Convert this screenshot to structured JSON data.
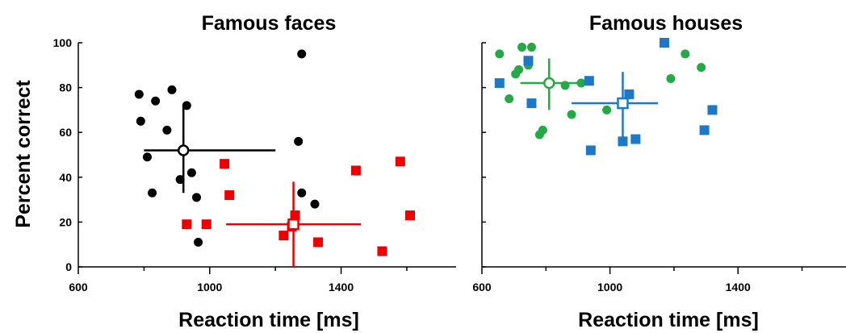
{
  "chart_data": [
    {
      "type": "scatter",
      "title": "Famous faces",
      "xlabel": "Reaction time [ms]",
      "ylabel": "Percent correct",
      "xlim": [
        600,
        1750
      ],
      "ylim": [
        0,
        100
      ],
      "x_ticks": [
        600,
        1000,
        1400
      ],
      "y_ticks": [
        0,
        20,
        40,
        60,
        80,
        100
      ],
      "grid": false,
      "series": [
        {
          "marker": "circle",
          "color": "#000000",
          "points": [
            [
              785,
              77
            ],
            [
              790,
              65
            ],
            [
              810,
              49
            ],
            [
              825,
              33
            ],
            [
              835,
              74
            ],
            [
              870,
              61
            ],
            [
              885,
              79
            ],
            [
              910,
              39
            ],
            [
              930,
              72
            ],
            [
              945,
              42
            ],
            [
              960,
              31
            ],
            [
              965,
              11
            ],
            [
              1270,
              56
            ],
            [
              1280,
              95
            ],
            [
              1280,
              33
            ],
            [
              1320,
              28
            ]
          ],
          "mean": {
            "x": 920,
            "y": 52,
            "x_err": [
              800,
              1200
            ],
            "y_err": [
              33,
              72
            ]
          }
        },
        {
          "marker": "square",
          "color": "#ee0000",
          "points": [
            [
              930,
              19
            ],
            [
              990,
              19
            ],
            [
              1045,
              46
            ],
            [
              1060,
              32
            ],
            [
              1225,
              14
            ],
            [
              1250,
              18
            ],
            [
              1260,
              23
            ],
            [
              1330,
              11
            ],
            [
              1445,
              43
            ],
            [
              1525,
              7
            ],
            [
              1580,
              47
            ],
            [
              1610,
              23
            ]
          ],
          "mean": {
            "x": 1255,
            "y": 19,
            "x_err": [
              1050,
              1460
            ],
            "y_err": [
              0,
              38
            ]
          }
        }
      ]
    },
    {
      "type": "scatter",
      "title": "Famous houses",
      "xlabel": "Reaction time [ms]",
      "ylabel": "",
      "xlim": [
        600,
        1750
      ],
      "ylim": [
        0,
        100
      ],
      "x_ticks": [
        600,
        1000,
        1400
      ],
      "y_ticks": [
        0,
        20,
        40,
        60,
        80,
        100
      ],
      "grid": false,
      "series": [
        {
          "marker": "circle",
          "color": "#22aa44",
          "points": [
            [
              655,
              95
            ],
            [
              685,
              75
            ],
            [
              705,
              86
            ],
            [
              715,
              88
            ],
            [
              725,
              98
            ],
            [
              745,
              90
            ],
            [
              755,
              98
            ],
            [
              780,
              59
            ],
            [
              790,
              61
            ],
            [
              860,
              81
            ],
            [
              880,
              68
            ],
            [
              910,
              82
            ],
            [
              990,
              70
            ],
            [
              1190,
              84
            ],
            [
              1235,
              95
            ],
            [
              1285,
              89
            ]
          ],
          "mean": {
            "x": 810,
            "y": 82,
            "x_err": [
              720,
              920
            ],
            "y_err": [
              70,
              93
            ]
          }
        },
        {
          "marker": "square",
          "color": "#1e78c8",
          "points": [
            [
              655,
              82
            ],
            [
              745,
              92
            ],
            [
              755,
              73
            ],
            [
              935,
              83
            ],
            [
              940,
              52
            ],
            [
              1040,
              56
            ],
            [
              1060,
              77
            ],
            [
              1080,
              57
            ],
            [
              1170,
              100
            ],
            [
              1295,
              61
            ],
            [
              1320,
              70
            ]
          ],
          "mean": {
            "x": 1040,
            "y": 73,
            "x_err": [
              880,
              1150
            ],
            "y_err": [
              55,
              87
            ]
          }
        }
      ]
    }
  ]
}
